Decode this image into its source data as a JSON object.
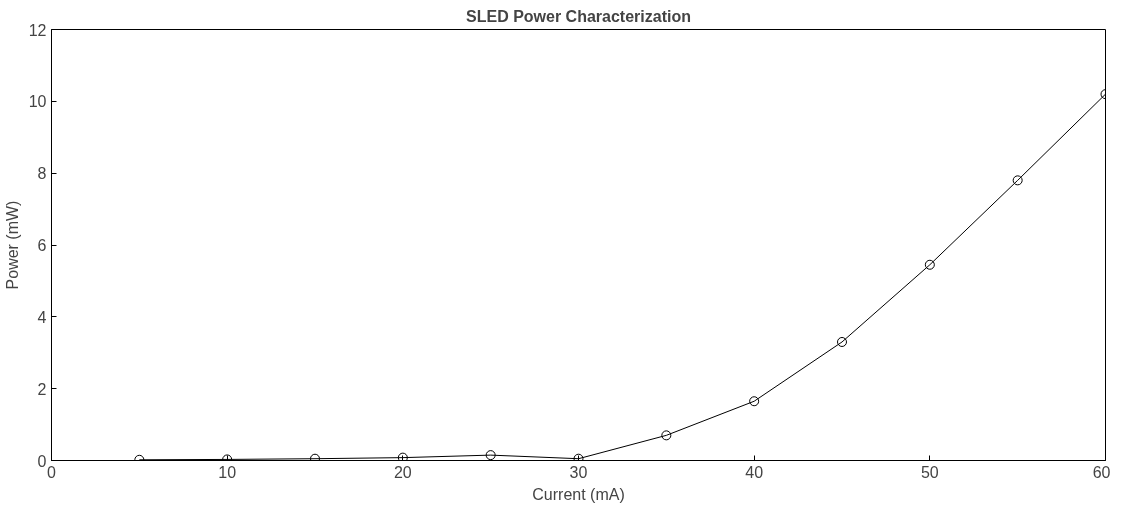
{
  "chart_data": {
    "type": "line",
    "title": "SLED Power Characterization",
    "xlabel": "Current (mA)",
    "ylabel": "Power (mW)",
    "x": [
      5,
      10,
      15,
      20,
      25,
      30,
      35,
      40,
      45,
      50,
      55,
      60
    ],
    "series": [
      {
        "color": "#000000",
        "values": [
          0.02,
          0.03,
          0.05,
          0.08,
          0.15,
          0.05,
          0.7,
          1.65,
          3.3,
          5.45,
          7.8,
          10.2
        ]
      }
    ],
    "xlim": [
      0,
      60
    ],
    "xticks": [
      0,
      10,
      20,
      30,
      40,
      50,
      60
    ],
    "ylim": [
      0,
      12
    ],
    "yticks": [
      0,
      2,
      4,
      6,
      8,
      10,
      12
    ],
    "grid": false,
    "marker": "circle",
    "line_style": "solid"
  }
}
